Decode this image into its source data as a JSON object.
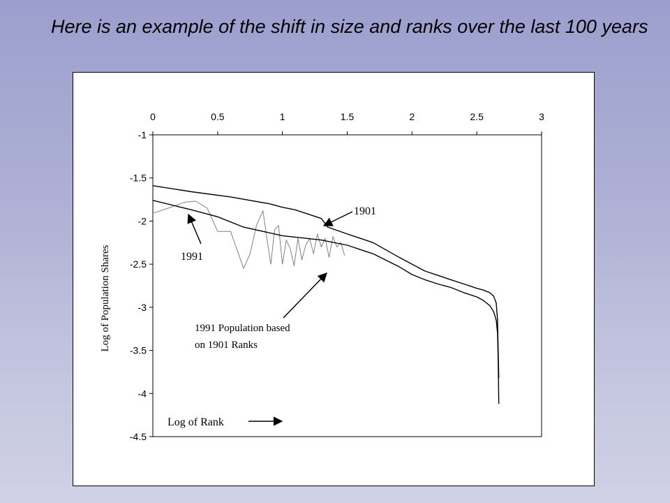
{
  "slide": {
    "title": "Here is an example of the shift in size and ranks over the last 100 years"
  },
  "chart_data": {
    "type": "line",
    "title": "",
    "xlabel": "Log of Rank",
    "ylabel": "Log of Population Shares",
    "xlim": [
      0,
      3
    ],
    "ylim": [
      -4.5,
      -1
    ],
    "x_axis_position": "top",
    "x_ticks": [
      "0",
      "0.5",
      "1",
      "1.5",
      "2",
      "2.5",
      "3"
    ],
    "y_ticks": [
      "-1",
      "-1.5",
      "-2",
      "-2.5",
      "-3",
      "-3.5",
      "-4",
      "-4.5"
    ],
    "grid": false,
    "series": [
      {
        "name": "1901",
        "color": "#000000",
        "x": [
          0,
          0.3,
          0.6,
          0.9,
          1.0,
          1.1,
          1.2,
          1.3,
          1.35,
          1.5,
          1.7,
          1.9,
          2.0,
          2.1,
          2.2,
          2.3,
          2.4,
          2.5,
          2.55,
          2.6,
          2.63,
          2.65,
          2.66,
          2.665,
          2.67
        ],
        "y": [
          -1.59,
          -1.66,
          -1.72,
          -1.8,
          -1.84,
          -1.87,
          -1.92,
          -1.97,
          -2.07,
          -2.15,
          -2.25,
          -2.42,
          -2.5,
          -2.58,
          -2.63,
          -2.68,
          -2.73,
          -2.78,
          -2.8,
          -2.83,
          -2.87,
          -2.95,
          -3.15,
          -3.5,
          -3.82
        ]
      },
      {
        "name": "1991",
        "color": "#000000",
        "x": [
          0,
          0.3,
          0.5,
          0.7,
          1.0,
          1.3,
          1.5,
          1.7,
          1.9,
          2.0,
          2.1,
          2.2,
          2.3,
          2.4,
          2.5,
          2.55,
          2.6,
          2.63,
          2.65,
          2.66,
          2.665,
          2.67
        ],
        "y": [
          -1.76,
          -1.87,
          -1.95,
          -2.07,
          -2.17,
          -2.22,
          -2.28,
          -2.38,
          -2.53,
          -2.62,
          -2.68,
          -2.73,
          -2.77,
          -2.83,
          -2.88,
          -2.92,
          -2.98,
          -3.05,
          -3.15,
          -3.3,
          -3.6,
          -4.12
        ]
      },
      {
        "name": "1991 Population based on 1901 Ranks",
        "color": "#808080",
        "x": [
          0,
          0.12,
          0.25,
          0.33,
          0.42,
          0.5,
          0.6,
          0.7,
          0.75,
          0.8,
          0.85,
          0.88,
          0.91,
          0.94,
          0.97,
          1.0,
          1.03,
          1.06,
          1.09,
          1.12,
          1.15,
          1.18,
          1.21,
          1.24,
          1.27,
          1.3,
          1.33,
          1.36,
          1.39,
          1.42,
          1.45,
          1.48
        ],
        "y": [
          -1.91,
          -1.85,
          -1.78,
          -1.77,
          -1.85,
          -2.12,
          -2.12,
          -2.55,
          -2.38,
          -2.05,
          -1.88,
          -2.2,
          -2.5,
          -2.1,
          -2.05,
          -2.5,
          -2.22,
          -2.32,
          -2.52,
          -2.2,
          -2.45,
          -2.28,
          -2.2,
          -2.38,
          -2.15,
          -2.3,
          -2.2,
          -2.42,
          -2.18,
          -2.3,
          -2.25,
          -2.4
        ]
      }
    ],
    "annotations": [
      {
        "text": "1901",
        "target_series": "1901"
      },
      {
        "text": "1991",
        "target_series": "1991"
      },
      {
        "text": "1991 Population based on 1901 Ranks",
        "lines": [
          "1991 Population based",
          "on 1901 Ranks"
        ],
        "target_series": "1991 Population based on 1901 Ranks"
      },
      {
        "text": "Log of Rank",
        "arrow": "right"
      }
    ]
  }
}
